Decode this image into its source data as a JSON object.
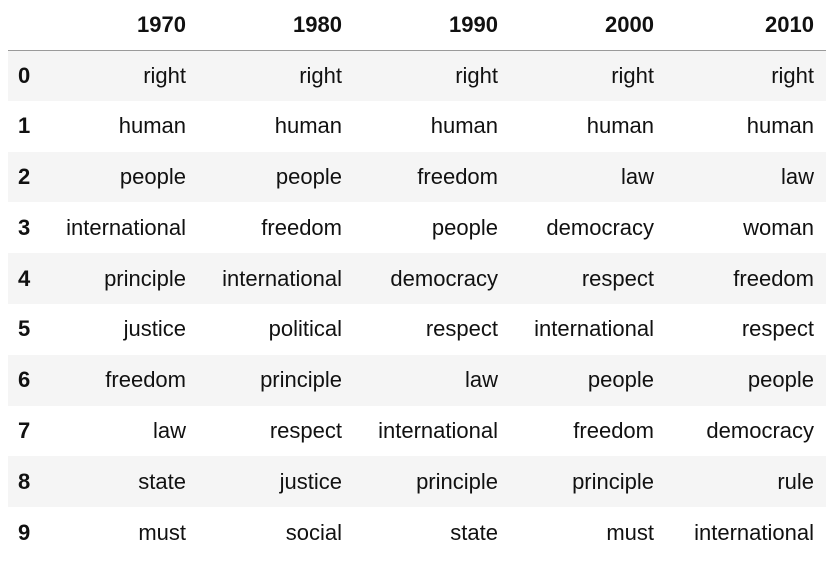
{
  "table": {
    "columns": [
      "1970",
      "1980",
      "1990",
      "2000",
      "2010"
    ],
    "rows": [
      {
        "index": "0",
        "cells": [
          "right",
          "right",
          "right",
          "right",
          "right"
        ]
      },
      {
        "index": "1",
        "cells": [
          "human",
          "human",
          "human",
          "human",
          "human"
        ]
      },
      {
        "index": "2",
        "cells": [
          "people",
          "people",
          "freedom",
          "law",
          "law"
        ]
      },
      {
        "index": "3",
        "cells": [
          "international",
          "freedom",
          "people",
          "democracy",
          "woman"
        ]
      },
      {
        "index": "4",
        "cells": [
          "principle",
          "international",
          "democracy",
          "respect",
          "freedom"
        ]
      },
      {
        "index": "5",
        "cells": [
          "justice",
          "political",
          "respect",
          "international",
          "respect"
        ]
      },
      {
        "index": "6",
        "cells": [
          "freedom",
          "principle",
          "law",
          "people",
          "people"
        ]
      },
      {
        "index": "7",
        "cells": [
          "law",
          "respect",
          "international",
          "freedom",
          "democracy"
        ]
      },
      {
        "index": "8",
        "cells": [
          "state",
          "justice",
          "principle",
          "principle",
          "rule"
        ]
      },
      {
        "index": "9",
        "cells": [
          "must",
          "social",
          "state",
          "must",
          "international"
        ]
      }
    ]
  }
}
